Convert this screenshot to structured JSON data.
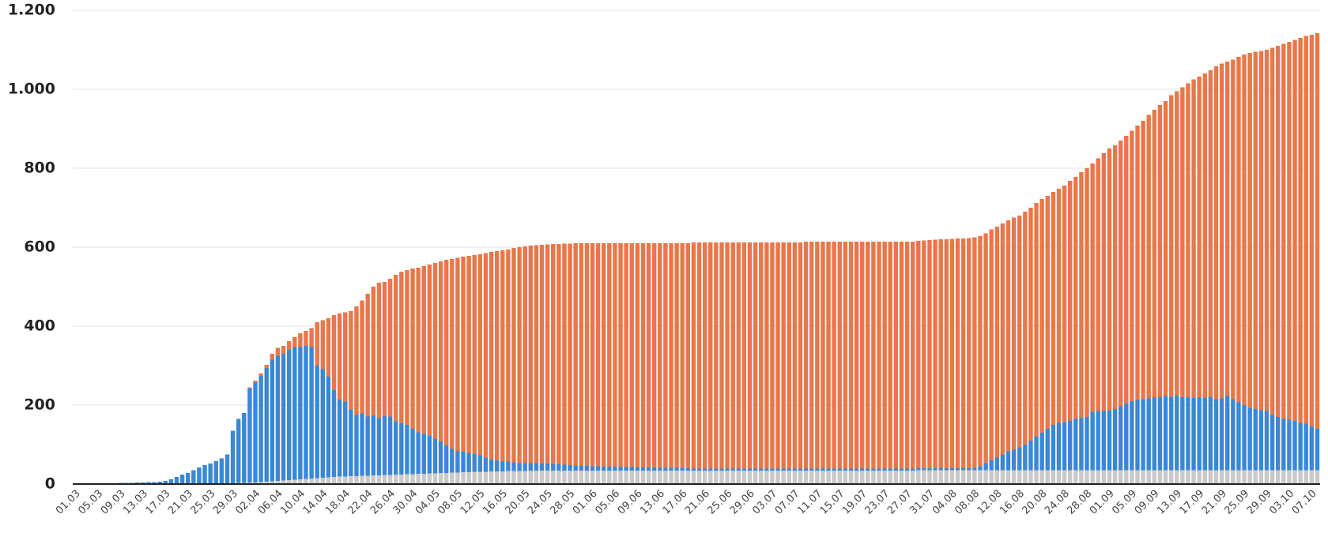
{
  "chart_data": {
    "type": "stacked_bar",
    "categories": [
      "01.03",
      null,
      null,
      null,
      "05.03",
      null,
      null,
      null,
      "09.03",
      null,
      null,
      null,
      "13.03",
      null,
      null,
      null,
      "17.03",
      null,
      null,
      null,
      "21.03",
      null,
      null,
      null,
      "25.03",
      null,
      null,
      null,
      "29.03",
      null,
      null,
      null,
      "02.04",
      null,
      null,
      null,
      "06.04",
      null,
      null,
      null,
      "10.04",
      null,
      null,
      null,
      "14.04",
      null,
      null,
      null,
      "18.04",
      null,
      null,
      null,
      "22.04",
      null,
      null,
      null,
      "26.04",
      null,
      null,
      null,
      "30.04",
      null,
      null,
      null,
      "04.05",
      null,
      null,
      null,
      "08.05",
      null,
      null,
      null,
      "12.05",
      null,
      null,
      null,
      "16.05",
      null,
      null,
      null,
      "20.05",
      null,
      null,
      null,
      "24.05",
      null,
      null,
      null,
      "28.05",
      null,
      null,
      null,
      "01.06",
      null,
      null,
      null,
      "05.06",
      null,
      null,
      null,
      "09.06",
      null,
      null,
      null,
      "13.06",
      null,
      null,
      null,
      "17.06",
      null,
      null,
      null,
      "21.06",
      null,
      null,
      null,
      "25.06",
      null,
      null,
      null,
      "29.06",
      null,
      null,
      null,
      "03.07",
      null,
      null,
      null,
      "07.07",
      null,
      null,
      null,
      "11.07",
      null,
      null,
      null,
      "15.07",
      null,
      null,
      null,
      "19.07",
      null,
      null,
      null,
      "23.07",
      null,
      null,
      null,
      "27.07",
      null,
      null,
      null,
      "31.07",
      null,
      null,
      null,
      "04.08",
      null,
      null,
      null,
      "08.08",
      null,
      null,
      null,
      "12.08",
      null,
      null,
      null,
      "16.08",
      null,
      null,
      null,
      "20.08",
      null,
      null,
      null,
      "24.08",
      null,
      null,
      null,
      "28.08",
      null,
      null,
      null,
      "01.09",
      null,
      null,
      null,
      "05.09",
      null,
      null,
      null,
      "09.09",
      null,
      null,
      null,
      "13.09",
      null,
      null,
      null,
      "17.09",
      null,
      null,
      null,
      "21.09",
      null,
      null,
      null,
      "25.09",
      null,
      null,
      null,
      "29.09",
      null,
      null,
      null,
      "03.10",
      null,
      null,
      null,
      "07.10",
      null
    ],
    "series": [
      {
        "color": "#c9c9c9",
        "values": [
          0,
          0,
          0,
          0,
          0,
          0,
          0,
          0,
          0,
          0,
          0,
          0,
          0,
          0,
          0,
          0,
          0,
          0,
          0,
          0,
          0,
          0,
          0,
          0,
          0,
          1,
          1,
          2,
          2,
          3,
          3,
          4,
          4,
          5,
          6,
          7,
          8,
          9,
          10,
          11,
          12,
          13,
          14,
          15,
          16,
          17,
          18,
          19,
          19,
          20,
          20,
          21,
          21,
          22,
          22,
          23,
          23,
          24,
          24,
          25,
          25,
          26,
          26,
          27,
          27,
          28,
          28,
          29,
          29,
          30,
          30,
          31,
          31,
          31,
          32,
          32,
          32,
          33,
          33,
          33,
          33,
          34,
          34,
          34,
          34,
          34,
          34,
          34,
          34,
          34,
          34,
          34,
          34,
          34,
          34,
          34,
          34,
          34,
          34,
          34,
          34,
          34,
          34,
          34,
          34,
          34,
          34,
          34,
          34,
          34,
          34,
          34,
          34,
          34,
          34,
          34,
          34,
          34,
          34,
          34,
          34,
          34,
          34,
          34,
          34,
          34,
          34,
          34,
          34,
          34,
          34,
          34,
          34,
          34,
          34,
          34,
          34,
          34,
          34,
          34,
          34,
          34,
          34,
          34,
          34,
          34,
          34,
          34,
          34,
          34,
          35,
          35,
          35,
          35,
          35,
          35,
          35,
          35,
          35,
          35,
          35,
          35,
          35,
          35,
          35,
          35,
          35,
          35,
          35,
          35,
          35,
          35,
          35,
          35,
          35,
          35,
          35,
          35,
          35,
          35,
          35,
          35,
          35,
          35,
          35,
          35,
          35,
          35,
          35,
          35,
          35,
          35,
          35,
          35,
          35,
          35,
          35,
          35,
          35,
          35,
          35,
          35,
          35,
          35,
          35,
          35,
          35,
          35,
          35,
          35,
          35,
          35,
          35,
          35,
          35,
          35,
          35,
          35,
          35,
          35,
          35,
          35
        ]
      },
      {
        "color": "#3a87d6",
        "values": [
          0,
          0,
          0,
          1,
          1,
          1,
          2,
          2,
          3,
          3,
          3,
          4,
          4,
          5,
          5,
          6,
          8,
          12,
          18,
          24,
          28,
          35,
          42,
          48,
          52,
          57,
          64,
          73,
          133,
          162,
          177,
          238,
          253,
          269,
          288,
          308,
          317,
          321,
          330,
          336,
          335,
          337,
          333,
          285,
          275,
          255,
          220,
          195,
          190,
          168,
          155,
          158,
          150,
          152,
          145,
          150,
          148,
          135,
          130,
          125,
          115,
          105,
          100,
          95,
          88,
          80,
          70,
          60,
          55,
          52,
          48,
          45,
          42,
          35,
          30,
          28,
          25,
          24,
          22,
          20,
          20,
          19,
          19,
          18,
          18,
          17,
          16,
          15,
          14,
          13,
          12,
          12,
          11,
          11,
          10,
          10,
          10,
          9,
          9,
          9,
          8,
          8,
          8,
          8,
          7,
          7,
          7,
          7,
          6,
          6,
          5,
          5,
          5,
          5,
          5,
          5,
          5,
          5,
          5,
          5,
          5,
          5,
          5,
          5,
          5,
          5,
          5,
          5,
          5,
          5,
          5,
          5,
          5,
          5,
          5,
          5,
          5,
          5,
          5,
          5,
          5,
          5,
          5,
          5,
          5,
          5,
          5,
          5,
          5,
          5,
          5,
          5,
          5,
          5,
          5,
          5,
          5,
          5,
          5,
          5,
          6,
          10,
          18,
          25,
          32,
          40,
          48,
          52,
          58,
          65,
          75,
          85,
          95,
          105,
          115,
          120,
          122,
          125,
          130,
          132,
          135,
          148,
          150,
          150,
          152,
          155,
          162,
          168,
          175,
          178,
          180,
          182,
          185,
          185,
          188,
          186,
          188,
          185,
          185,
          183,
          185,
          183,
          185,
          180,
          182,
          188,
          180,
          172,
          165,
          158,
          155,
          152,
          150,
          140,
          135,
          130,
          128,
          125,
          120,
          118,
          110,
          105
        ]
      },
      {
        "color": "#e8774a",
        "values": [
          0,
          0,
          0,
          0,
          0,
          0,
          0,
          0,
          0,
          0,
          0,
          0,
          0,
          0,
          0,
          0,
          0,
          0,
          0,
          0,
          0,
          0,
          0,
          0,
          0,
          0,
          0,
          0,
          0,
          0,
          0,
          3,
          5,
          6,
          8,
          15,
          20,
          20,
          22,
          25,
          35,
          38,
          48,
          110,
          124,
          148,
          190,
          218,
          226,
          250,
          275,
          286,
          311,
          326,
          343,
          339,
          349,
          371,
          384,
          392,
          406,
          417,
          426,
          434,
          445,
          456,
          470,
          481,
          489,
          494,
          500,
          504,
          509,
          519,
          526,
          530,
          535,
          537,
          543,
          547,
          549,
          551,
          552,
          554,
          555,
          557,
          558,
          560,
          561,
          563,
          564,
          564,
          565,
          565,
          566,
          566,
          566,
          567,
          567,
          567,
          568,
          568,
          568,
          568,
          569,
          569,
          569,
          569,
          570,
          570,
          573,
          573,
          573,
          573,
          573,
          573,
          573,
          573,
          573,
          573,
          573,
          573,
          573,
          573,
          573,
          573,
          573,
          573,
          573,
          573,
          575,
          575,
          575,
          575,
          575,
          575,
          575,
          575,
          575,
          575,
          575,
          575,
          575,
          575,
          575,
          575,
          575,
          575,
          575,
          575,
          576,
          577,
          578,
          579,
          580,
          580,
          581,
          582,
          582,
          583,
          584,
          583,
          582,
          585,
          585,
          585,
          585,
          588,
          587,
          590,
          590,
          592,
          592,
          590,
          590,
          593,
          599,
          608,
          613,
          623,
          630,
          629,
          640,
          653,
          663,
          668,
          673,
          679,
          685,
          695,
          705,
          718,
          728,
          740,
          747,
          764,
          772,
          785,
          795,
          807,
          812,
          822,
          828,
          843,
          848,
          847,
          860,
          875,
          888,
          899,
          905,
          910,
          915,
          930,
          940,
          950,
          957,
          965,
          975,
          982,
          993,
          1002
        ]
      }
    ],
    "ylim": [
      0,
      1200
    ],
    "yticks": [
      0,
      200,
      400,
      600,
      800,
      {
        "value": 1000,
        "label": "1.000"
      },
      {
        "value": 1200,
        "label": "1.200"
      }
    ],
    "grid": true
  }
}
